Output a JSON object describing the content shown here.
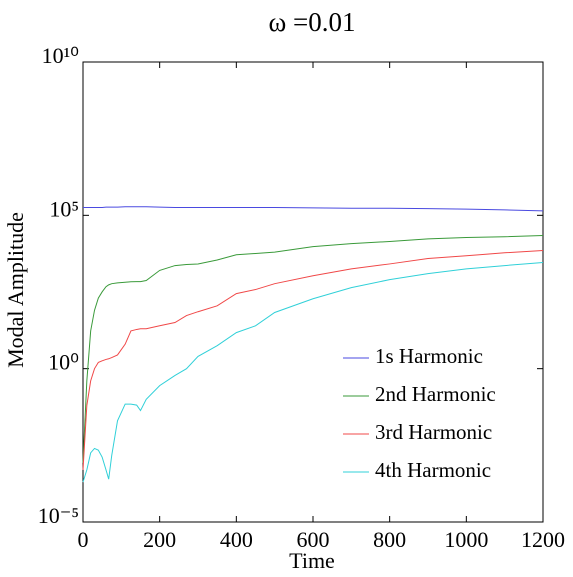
{
  "chart_data": {
    "type": "line",
    "title": "ω =0.01",
    "xlabel": "Time",
    "ylabel": "Modal Amplitude",
    "yscale": "log",
    "legend": "lower right",
    "xlim": [
      0,
      1200
    ],
    "xticks": [
      0,
      200,
      400,
      600,
      800,
      1000,
      1200
    ],
    "ylim": [
      1e-05,
      10000000000
    ],
    "yticks": [
      {
        "value": 1e-05,
        "label": "10⁻⁵"
      },
      {
        "value": 1,
        "label": "10⁰"
      },
      {
        "value": 100000,
        "label": "10⁵"
      },
      {
        "value": 10000000000,
        "label": "10¹⁰"
      }
    ],
    "x": [
      0,
      10,
      20,
      30,
      40,
      50,
      60,
      67,
      75,
      90,
      110,
      125,
      140,
      150,
      165,
      200,
      240,
      270,
      300,
      350,
      400,
      450,
      500,
      600,
      700,
      800,
      900,
      1000,
      1100,
      1200
    ],
    "series": [
      {
        "name": "1s Harmonic",
        "color": "#4a4ae0",
        "values": [
          180000,
          180000,
          180000,
          180000,
          180000,
          180000,
          185000,
          185000,
          185000,
          185000,
          190000,
          190000,
          190000,
          190000,
          190000,
          185000,
          180000,
          180000,
          180000,
          180000,
          180000,
          180000,
          180000,
          175000,
          170000,
          170000,
          165000,
          160000,
          150000,
          140000
        ]
      },
      {
        "name": "2nd Harmonic",
        "color": "#3a9a3a",
        "values": [
          0.00085,
          0.4,
          17,
          80,
          200,
          320,
          470,
          540,
          590,
          630,
          660,
          680,
          690,
          690,
          750,
          1600,
          2300,
          2500,
          2600,
          3500,
          5200,
          5700,
          6300,
          9500,
          12000,
          14000,
          17000,
          19000,
          20000,
          22000
        ]
      },
      {
        "name": "3rd Harmonic",
        "color": "#f04848",
        "values": [
          0.0005,
          0.063,
          0.4,
          1,
          1.6,
          1.8,
          2,
          2.1,
          2.3,
          2.8,
          6.3,
          17,
          19,
          20,
          20,
          25,
          32,
          54,
          72,
          112,
          280,
          380,
          590,
          1070,
          1800,
          2600,
          3900,
          4800,
          6000,
          7100
        ]
      },
      {
        "name": "4th Harmonic",
        "color": "#30d0d8",
        "values": [
          0.0002,
          0.0005,
          0.0018,
          0.0025,
          0.0022,
          0.0013,
          0.0005,
          0.00025,
          0.0015,
          0.02,
          0.07,
          0.07,
          0.065,
          0.043,
          0.1,
          0.28,
          0.6,
          1,
          2.5,
          5.6,
          15,
          25,
          68,
          190,
          440,
          800,
          1260,
          1800,
          2300,
          2900
        ]
      }
    ]
  }
}
